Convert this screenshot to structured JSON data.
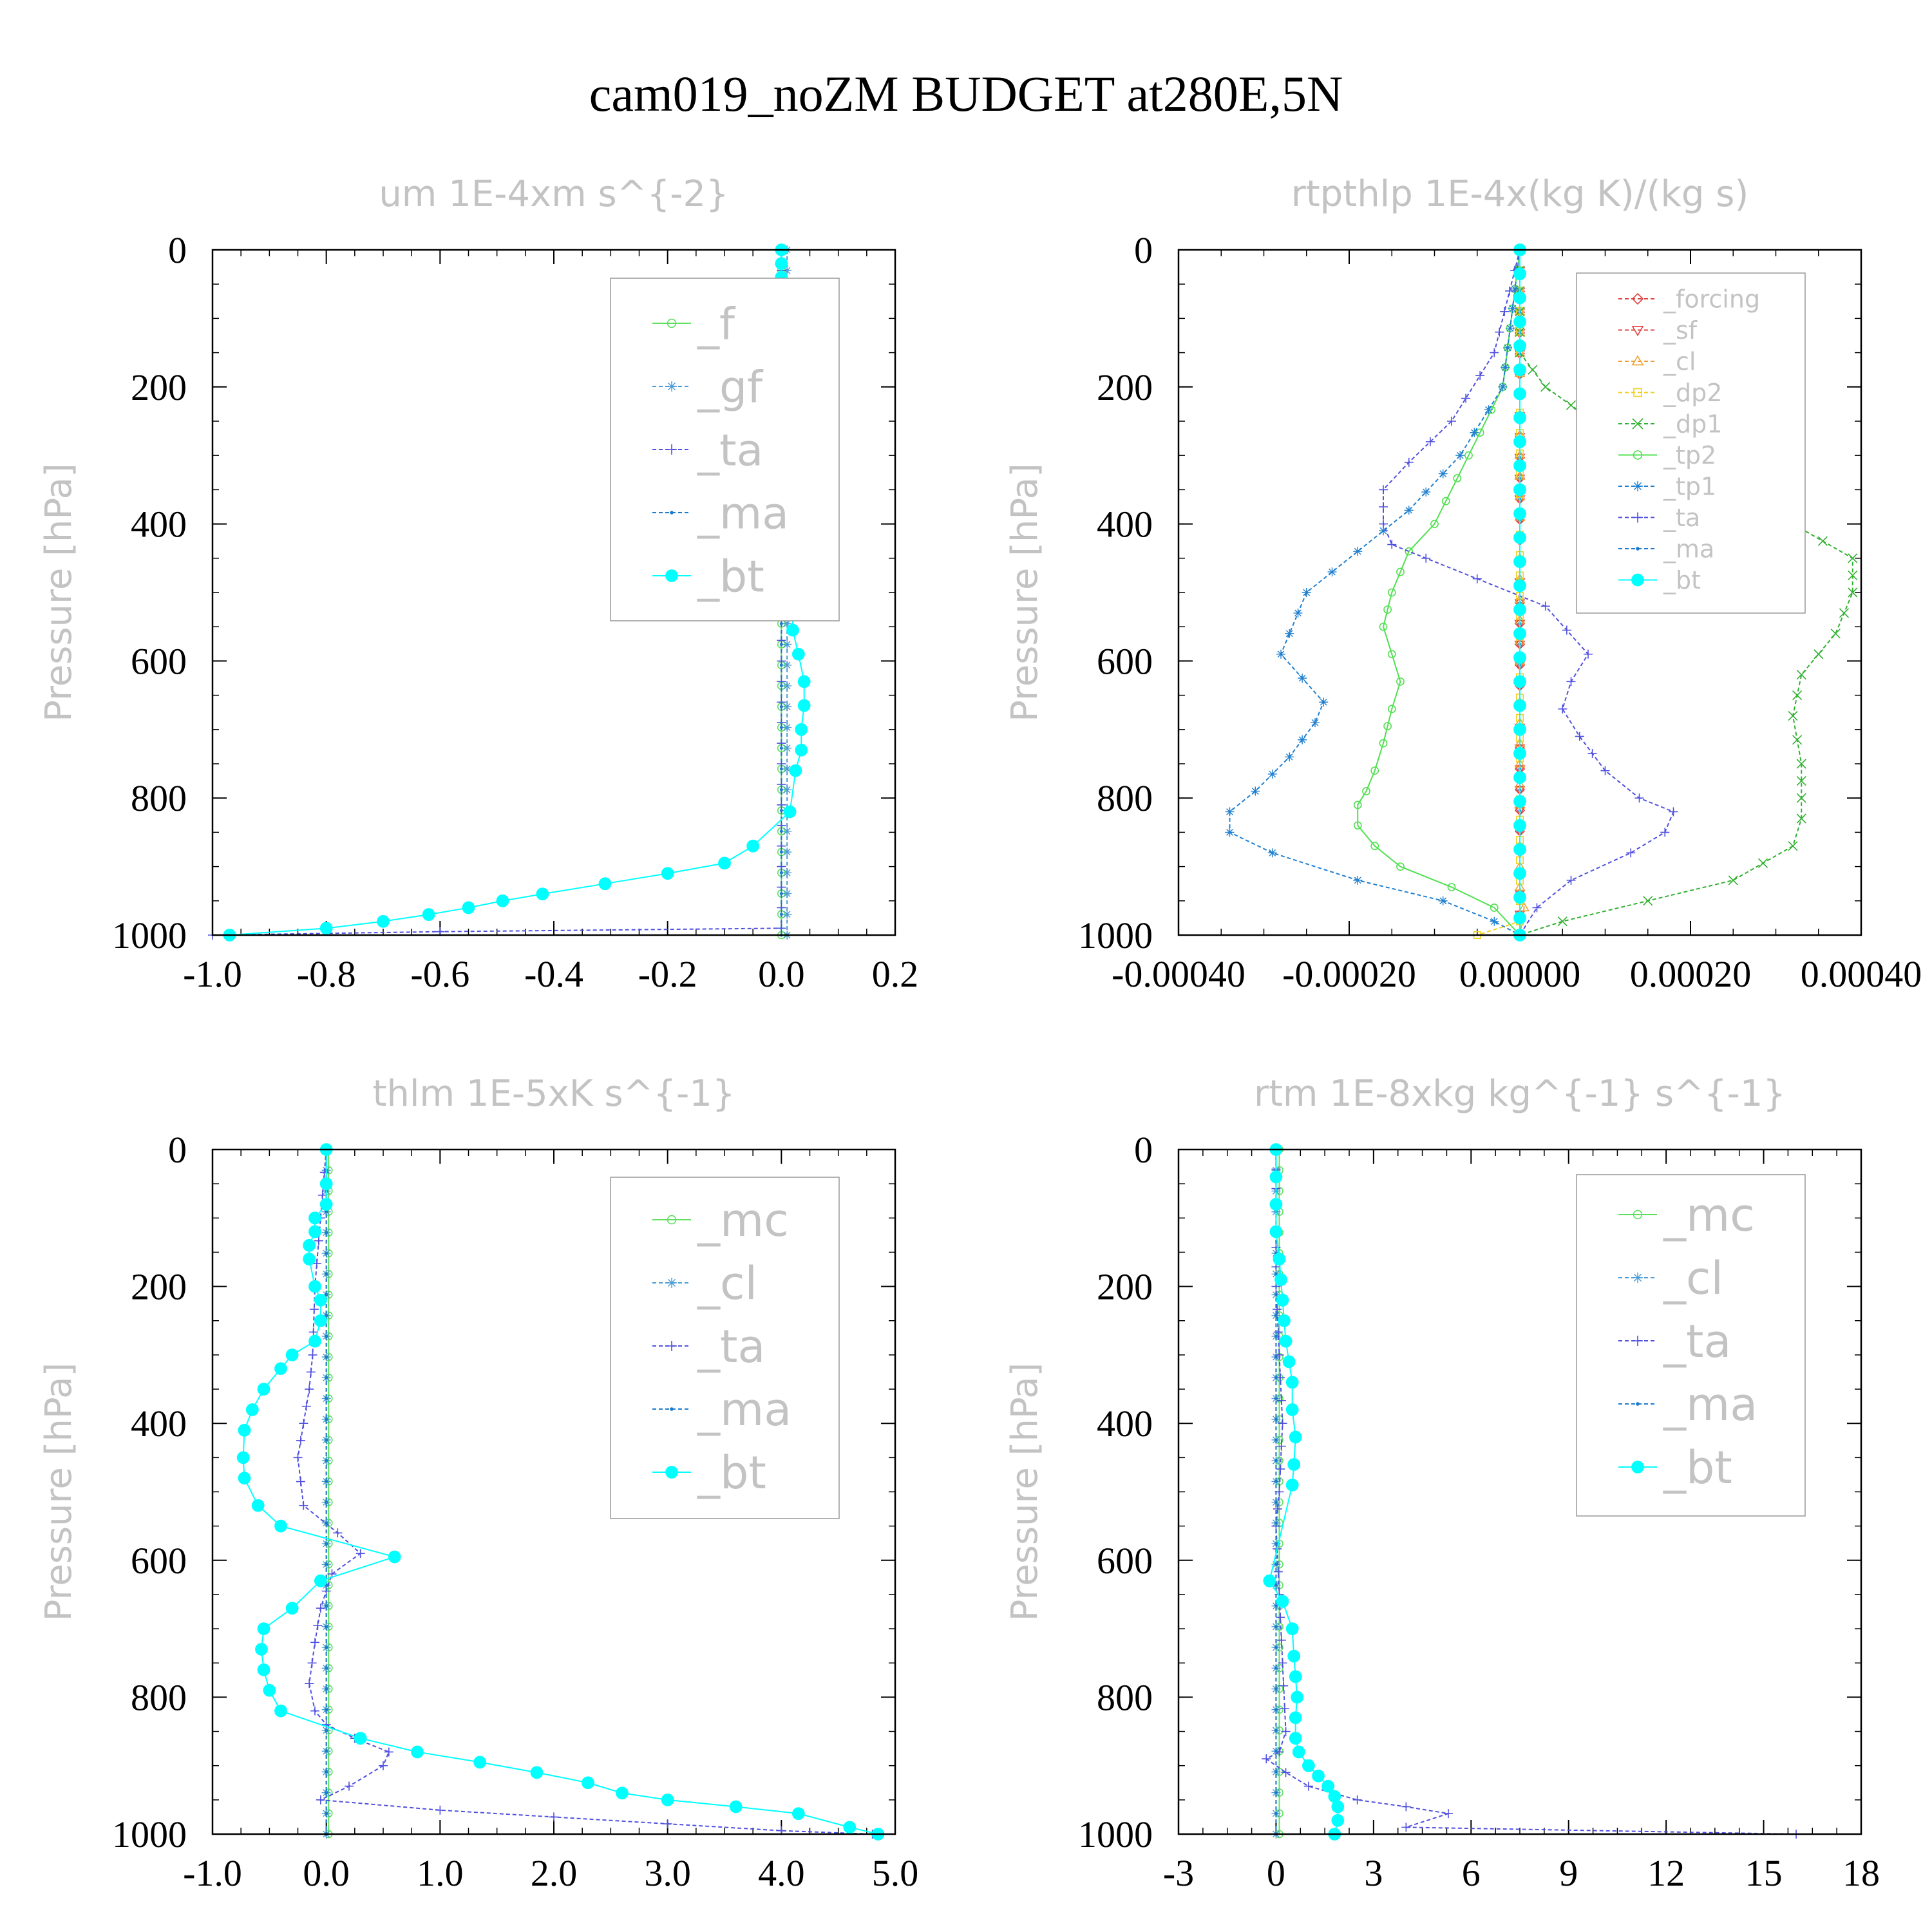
{
  "title": "cam019_noZM  BUDGET at280E,5N",
  "chart_data": [
    {
      "type": "line",
      "title": "um  1E-4xm s^{-2}",
      "ylabel": "Pressure [hPa]",
      "xlim": [
        -1.0,
        0.2
      ],
      "ylim": [
        1000,
        0
      ],
      "xticks": [
        "-1.0",
        "-0.8",
        "-0.6",
        "-0.4",
        "-0.2",
        "0.0",
        "0.2"
      ],
      "yticks": [
        "0",
        "200",
        "400",
        "600",
        "800",
        "1000"
      ],
      "legend": "top-right",
      "series": [
        {
          "name": "_f",
          "color": "#5ee05e",
          "marker": "circle-open",
          "x": [
            0.0,
            0.0
          ],
          "y": [
            0,
            1000
          ]
        },
        {
          "name": "_gf",
          "color": "#4a9bd6",
          "marker": "asterisk",
          "x": [
            0.01,
            0.01
          ],
          "y": [
            0,
            1000
          ]
        },
        {
          "name": "_ta",
          "color": "#5050e0",
          "marker": "plus",
          "x": [
            0.0,
            0.0,
            -0.6,
            -1.0
          ],
          "y": [
            0,
            990,
            995,
            1000
          ]
        },
        {
          "name": "_ma",
          "color": "#1c7acc",
          "marker": "dot",
          "x": [
            0.0,
            0.0
          ],
          "y": [
            0,
            1000
          ]
        },
        {
          "name": "_bt",
          "color": "#00ffff",
          "marker": "filled-circle",
          "x": [
            0.0,
            0.0,
            0.0,
            0.0,
            0.0,
            0.0,
            -0.005,
            0.0,
            0.005,
            0.04,
            -0.01,
            -0.03,
            0.0,
            0.0,
            0.0,
            -0.005,
            -0.005,
            0.0,
            0.005,
            0.01,
            0.02,
            0.02,
            0.02,
            0.03,
            0.04,
            0.04,
            0.035,
            0.035,
            0.025,
            0.015,
            -0.05,
            -0.1,
            -0.2,
            -0.31,
            -0.42,
            -0.49,
            -0.55,
            -0.62,
            -0.7,
            -0.8,
            -0.97
          ],
          "y": [
            0,
            20,
            40,
            60,
            80,
            90,
            100,
            115,
            135,
            150,
            185,
            205,
            240,
            270,
            300,
            330,
            360,
            390,
            420,
            450,
            480,
            520,
            555,
            590,
            630,
            665,
            700,
            730,
            760,
            820,
            870,
            895,
            910,
            925,
            940,
            950,
            960,
            970,
            980,
            990,
            1000
          ]
        }
      ]
    },
    {
      "type": "line",
      "title": "rtpthlp  1E-4x(kg K)/(kg s)",
      "ylabel": "Pressure [hPa]",
      "xlim": [
        -0.0004,
        0.0004
      ],
      "ylim": [
        1000,
        0
      ],
      "xticks": [
        "-0.00040",
        "-0.00020",
        "0.00000",
        "0.00020",
        "0.00040"
      ],
      "yticks": [
        "0",
        "200",
        "400",
        "600",
        "800",
        "1000"
      ],
      "legend": "top-right",
      "series": [
        {
          "name": "_forcing",
          "color": "#e04040",
          "marker": "diamond",
          "x": [
            0.0,
            0.0
          ],
          "y": [
            0,
            1000
          ]
        },
        {
          "name": "_sf",
          "color": "#e04040",
          "marker": "triangle-down",
          "x": [
            0.0,
            0.0
          ],
          "y": [
            0,
            1000
          ]
        },
        {
          "name": "_cl",
          "color": "#f0a030",
          "marker": "triangle-up",
          "x": [
            0.0,
            0.0,
            5e-06,
            0.0
          ],
          "y": [
            0,
            930,
            960,
            1000
          ]
        },
        {
          "name": "_dp2",
          "color": "#f0d020",
          "marker": "square",
          "x": [
            0.0,
            0.0,
            -5e-05,
            0.0
          ],
          "y": [
            0,
            980,
            1000,
            1000
          ]
        },
        {
          "name": "_dp1",
          "color": "#30b030",
          "marker": "x",
          "x": [
            0.0,
            0.0,
            3e-05,
            0.00012,
            0.00022,
            0.00032,
            0.00039,
            0.00039,
            0.00037,
            0.00033,
            0.00032,
            0.00033,
            0.00033,
            0.00033,
            0.00032,
            0.00025,
            0.00015,
            5e-05,
            0.0
          ],
          "y": [
            0,
            150,
            200,
            280,
            330,
            400,
            450,
            500,
            560,
            620,
            680,
            750,
            800,
            830,
            870,
            920,
            950,
            980,
            1000
          ]
        },
        {
          "name": "_tp2",
          "color": "#50e050",
          "marker": "circle-open",
          "x": [
            0.0,
            -2e-05,
            -6e-05,
            -0.0001,
            -0.00013,
            -0.00015,
            -0.00016,
            -0.00015,
            -0.00014,
            -0.00015,
            -0.00016,
            -0.00017,
            -0.00018,
            -0.00019,
            -0.00019,
            -0.00017,
            -0.00014,
            -8e-05,
            -3e-05,
            0.0
          ],
          "y": [
            0,
            200,
            300,
            400,
            440,
            500,
            550,
            590,
            630,
            670,
            720,
            760,
            790,
            810,
            840,
            870,
            900,
            930,
            960,
            1000
          ]
        },
        {
          "name": "_tp1",
          "color": "#2080d0",
          "marker": "asterisk",
          "x": [
            0.0,
            -2e-05,
            -7e-05,
            -0.00013,
            -0.00019,
            -0.00025,
            -0.00028,
            -0.00023,
            -0.00024,
            -0.00027,
            -0.00031,
            -0.00034,
            -0.00034,
            -0.00029,
            -0.00019,
            -9e-05,
            -3e-05,
            0.0
          ],
          "y": [
            0,
            200,
            300,
            380,
            440,
            500,
            590,
            660,
            690,
            740,
            790,
            820,
            850,
            880,
            920,
            950,
            980,
            1000
          ]
        },
        {
          "name": "_ta",
          "color": "#5050e0",
          "marker": "plus",
          "x": [
            0.0,
            -3e-05,
            -8e-05,
            -0.00013,
            -0.00016,
            -0.00016,
            -0.00015,
            -0.00011,
            -5e-05,
            3e-05,
            8e-05,
            6e-05,
            5e-05,
            7e-05,
            0.0001,
            0.00014,
            0.00018,
            0.00017,
            0.00013,
            6e-05,
            2e-05,
            0.0
          ],
          "y": [
            0,
            150,
            250,
            310,
            350,
            400,
            430,
            450,
            480,
            520,
            590,
            630,
            670,
            710,
            760,
            800,
            820,
            850,
            880,
            920,
            960,
            1000
          ]
        },
        {
          "name": "_ma",
          "color": "#1c7acc",
          "marker": "dot",
          "x": [
            0.0,
            0.0
          ],
          "y": [
            0,
            1000
          ]
        },
        {
          "name": "_bt",
          "color": "#00ffff",
          "marker": "filled-circle",
          "x": [
            0.0,
            0.0,
            0.0,
            0.0,
            0.0,
            0.0,
            0.0,
            0.0,
            0.0,
            0.0,
            0.0,
            0.0,
            0.0,
            0.0,
            0.0,
            0.0,
            0.0,
            0.0,
            0.0,
            0.0,
            0.0,
            0.0,
            0.0,
            0.0,
            0.0,
            0.0,
            0.0,
            0.0,
            0.0,
            0.0
          ],
          "y": [
            0,
            35,
            70,
            105,
            140,
            175,
            210,
            245,
            280,
            315,
            350,
            385,
            420,
            455,
            490,
            525,
            560,
            595,
            630,
            665,
            700,
            735,
            770,
            805,
            840,
            875,
            910,
            945,
            975,
            1000
          ]
        }
      ]
    },
    {
      "type": "line",
      "title": "thlm  1E-5xK s^{-1}",
      "ylabel": "Pressure [hPa]",
      "xlim": [
        -1.0,
        5.0
      ],
      "ylim": [
        1000,
        0
      ],
      "xticks": [
        "-1.0",
        "0.0",
        "1.0",
        "2.0",
        "3.0",
        "4.0",
        "5.0"
      ],
      "yticks": [
        "0",
        "200",
        "400",
        "600",
        "800",
        "1000"
      ],
      "legend": "top-right",
      "series": [
        {
          "name": "_mc",
          "color": "#5ee05e",
          "marker": "circle-open",
          "x": [
            0.02,
            0.02
          ],
          "y": [
            0,
            1000
          ]
        },
        {
          "name": "_cl",
          "color": "#4a9bd6",
          "marker": "asterisk",
          "x": [
            0.0,
            0.0
          ],
          "y": [
            0,
            1000
          ]
        },
        {
          "name": "_ta",
          "color": "#5050e0",
          "marker": "plus",
          "x": [
            0.0,
            -0.05,
            -0.1,
            -0.12,
            -0.15,
            -0.2,
            -0.25,
            -0.2,
            0.1,
            0.3,
            0.05,
            -0.05,
            -0.1,
            -0.15,
            -0.1,
            0.0,
            0.25,
            0.55,
            0.5,
            0.2,
            -0.05,
            1.0,
            2.0,
            3.0,
            4.0,
            4.8
          ],
          "y": [
            0,
            100,
            200,
            300,
            350,
            400,
            450,
            520,
            560,
            590,
            620,
            670,
            720,
            780,
            820,
            840,
            860,
            880,
            900,
            930,
            950,
            965,
            975,
            985,
            995,
            1000
          ]
        },
        {
          "name": "_ma",
          "color": "#1c7acc",
          "marker": "dot",
          "x": [
            0.0,
            0.0
          ],
          "y": [
            0,
            1000
          ]
        },
        {
          "name": "_bt",
          "color": "#00ffff",
          "marker": "filled-circle",
          "x": [
            0.0,
            0.0,
            0.0,
            -0.1,
            -0.1,
            -0.15,
            -0.15,
            -0.1,
            -0.05,
            -0.05,
            -0.1,
            -0.3,
            -0.4,
            -0.55,
            -0.65,
            -0.72,
            -0.73,
            -0.72,
            -0.6,
            -0.4,
            0.6,
            -0.05,
            -0.3,
            -0.55,
            -0.57,
            -0.55,
            -0.5,
            -0.4,
            0.3,
            0.8,
            1.35,
            1.85,
            2.3,
            2.6,
            3.0,
            3.6,
            4.15,
            4.6,
            4.85
          ],
          "y": [
            0,
            50,
            80,
            100,
            120,
            140,
            160,
            200,
            220,
            250,
            280,
            300,
            320,
            350,
            380,
            410,
            450,
            480,
            520,
            550,
            595,
            630,
            670,
            700,
            730,
            760,
            790,
            820,
            860,
            880,
            895,
            910,
            925,
            940,
            950,
            960,
            970,
            990,
            1000
          ]
        }
      ]
    },
    {
      "type": "line",
      "title": "rtm  1E-8xkg kg^{-1} s^{-1}",
      "ylabel": "Pressure [hPa]",
      "xlim": [
        -3,
        18
      ],
      "ylim": [
        1000,
        0
      ],
      "xticks": [
        "-3",
        "0",
        "3",
        "6",
        "9",
        "12",
        "15",
        "18"
      ],
      "yticks": [
        "0",
        "200",
        "400",
        "600",
        "800",
        "1000"
      ],
      "legend": "top-right",
      "series": [
        {
          "name": "_mc",
          "color": "#5ee05e",
          "marker": "circle-open",
          "x": [
            0.1,
            0.1
          ],
          "y": [
            0,
            1000
          ]
        },
        {
          "name": "_cl",
          "color": "#4a9bd6",
          "marker": "asterisk",
          "x": [
            0.0,
            0.0
          ],
          "y": [
            0,
            1000
          ]
        },
        {
          "name": "_ta",
          "color": "#5050e0",
          "marker": "plus",
          "x": [
            0.0,
            0.0,
            0.1,
            0.2,
            0.1,
            0.0,
            0.1,
            0.2,
            0.3,
            0.1,
            -0.3,
            0.3,
            1.0,
            2.5,
            4.0,
            5.3,
            4.0,
            16.0
          ],
          "y": [
            0,
            200,
            300,
            400,
            500,
            550,
            650,
            750,
            850,
            880,
            890,
            910,
            930,
            950,
            960,
            970,
            990,
            1000
          ]
        },
        {
          "name": "_ma",
          "color": "#1c7acc",
          "marker": "dot",
          "x": [
            0.0,
            0.0
          ],
          "y": [
            0,
            1000
          ]
        },
        {
          "name": "_bt",
          "color": "#00ffff",
          "marker": "filled-circle",
          "x": [
            0.0,
            0.0,
            0.0,
            0.0,
            0.1,
            0.15,
            0.2,
            0.25,
            0.3,
            0.4,
            0.5,
            0.5,
            0.6,
            0.55,
            0.5,
            -0.2,
            0.2,
            0.5,
            0.55,
            0.6,
            0.65,
            0.6,
            0.6,
            0.7,
            1.0,
            1.3,
            1.6,
            1.8,
            1.9,
            1.9,
            1.8
          ],
          "y": [
            0,
            40,
            80,
            120,
            160,
            190,
            220,
            250,
            280,
            310,
            340,
            380,
            420,
            460,
            490,
            630,
            660,
            700,
            740,
            770,
            800,
            830,
            860,
            880,
            900,
            915,
            930,
            945,
            960,
            980,
            1000
          ]
        }
      ]
    }
  ]
}
